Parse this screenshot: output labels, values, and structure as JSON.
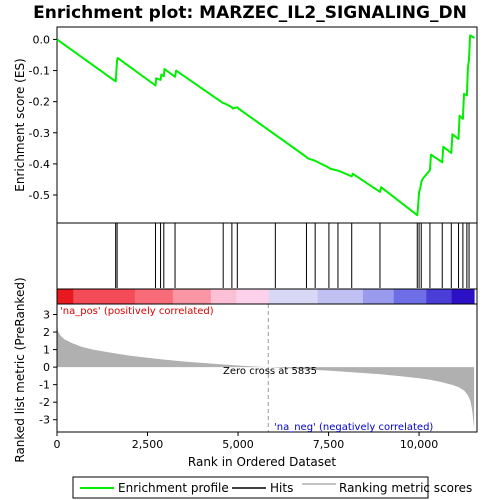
{
  "colors": {
    "enrichment_line": "#00ee00",
    "hits": "#000000",
    "ranking_fill": "#b0b0b0",
    "pos_label": "#dd0000",
    "neg_label": "#0000cc",
    "zero_cross_line": "#999999"
  },
  "chart_data": [
    {
      "type": "line",
      "panel": "enrichment",
      "title": "Enrichment plot: MARZEC_IL2_SIGNALING_DN",
      "ylabel": "Enrichment score (ES)",
      "xlim": [
        0,
        11600
      ],
      "ylim": [
        -0.59,
        0.04
      ],
      "yticks": [
        "0.0",
        "-0.1",
        "-0.2",
        "-0.3",
        "-0.4",
        "-0.5"
      ],
      "ytick_values": [
        0.0,
        -0.1,
        -0.2,
        -0.3,
        -0.4,
        -0.5
      ],
      "series": [
        {
          "name": "Enrichment profile",
          "x": [
            0,
            1620,
            1640,
            1660,
            1680,
            2720,
            2740,
            2860,
            2880,
            2950,
            2970,
            3260,
            3290,
            4590,
            4620,
            4830,
            4850,
            4980,
            5010,
            6890,
            6920,
            7130,
            7160,
            7510,
            7540,
            7760,
            7790,
            8140,
            8170,
            8920,
            8950,
            9950,
            9970,
            10000,
            10030,
            10060,
            10090,
            10300,
            10330,
            10640,
            10670,
            10890,
            10920,
            11090,
            11120,
            11210,
            11240,
            11320,
            11350,
            11380,
            11410,
            11530
          ],
          "y": [
            0.0,
            -0.135,
            -0.1,
            -0.065,
            -0.06,
            -0.148,
            -0.125,
            -0.13,
            -0.113,
            -0.118,
            -0.095,
            -0.12,
            -0.1,
            -0.205,
            -0.205,
            -0.218,
            -0.222,
            -0.218,
            -0.222,
            -0.378,
            -0.382,
            -0.39,
            -0.392,
            -0.412,
            -0.415,
            -0.422,
            -0.423,
            -0.44,
            -0.432,
            -0.49,
            -0.475,
            -0.565,
            -0.54,
            -0.49,
            -0.48,
            -0.46,
            -0.45,
            -0.42,
            -0.37,
            -0.395,
            -0.345,
            -0.365,
            -0.305,
            -0.32,
            -0.245,
            -0.255,
            -0.175,
            -0.18,
            -0.09,
            -0.065,
            0.013,
            0.005
          ]
        }
      ]
    },
    {
      "type": "hits",
      "panel": "hits",
      "name": "Hits",
      "positions": [
        1620,
        1660,
        2720,
        2860,
        2950,
        3260,
        4590,
        4830,
        4980,
        6030,
        6890,
        7130,
        7510,
        7760,
        8140,
        8920,
        9950,
        10000,
        10060,
        10300,
        10640,
        10890,
        11090,
        11210,
        11320,
        11380
      ]
    },
    {
      "type": "heatmap",
      "panel": "rank_colorbar",
      "x_blocks": [
        0,
        450,
        2150,
        3200,
        4250,
        4950,
        5850,
        7200,
        8450,
        9300,
        10200,
        10900,
        11520
      ],
      "block_colors": [
        "#e8181f",
        "#f34b58",
        "#f86c7a",
        "#fa96a3",
        "#fbbfd6",
        "#fbd2ea",
        "#d8d8f6",
        "#c0c0f2",
        "#9a9aee",
        "#6e6ee6",
        "#4a3dd8",
        "#2c10c6"
      ]
    },
    {
      "type": "area",
      "panel": "ranking",
      "ylabel": "Ranked list metric (PreRanked)",
      "xlabel": "Rank in Ordered Dataset",
      "xlim": [
        0,
        11600
      ],
      "ylim": [
        -3.7,
        3.6
      ],
      "yticks": [
        "3",
        "2",
        "1",
        "0",
        "-1",
        "-2",
        "-3"
      ],
      "ytick_values": [
        3,
        2,
        1,
        0,
        -1,
        -2,
        -3
      ],
      "xticks": [
        "0",
        "2,500",
        "5,000",
        "7,500",
        "10,000"
      ],
      "xtick_values": [
        0,
        2500,
        5000,
        7500,
        10000
      ],
      "x": [
        0,
        40,
        100,
        200,
        400,
        700,
        1000,
        1500,
        2000,
        2500,
        3000,
        3500,
        4000,
        4500,
        5000,
        5500,
        5835,
        6500,
        7000,
        7500,
        8000,
        8500,
        9000,
        9500,
        10000,
        10300,
        10600,
        10900,
        11100,
        11250,
        11350,
        11420,
        11470,
        11500,
        11520
      ],
      "y": [
        2.35,
        2.0,
        1.8,
        1.6,
        1.38,
        1.15,
        1.0,
        0.82,
        0.66,
        0.53,
        0.42,
        0.32,
        0.24,
        0.16,
        0.09,
        0.03,
        0.0,
        -0.08,
        -0.14,
        -0.2,
        -0.27,
        -0.34,
        -0.42,
        -0.52,
        -0.63,
        -0.72,
        -0.84,
        -1.0,
        -1.15,
        -1.35,
        -1.6,
        -1.95,
        -2.5,
        -3.1,
        -3.5
      ],
      "zero_cross_rank": 5835,
      "zero_cross_label": "Zero cross at 5835",
      "pos_label": "'na_pos' (positively correlated)",
      "neg_label": "'na_neg' (negatively correlated)"
    }
  ],
  "legend": {
    "items": [
      {
        "label": "Enrichment profile",
        "swatch": "green-line"
      },
      {
        "label": "Hits",
        "swatch": "black-line"
      },
      {
        "label": "Ranking metric scores",
        "swatch": "gray-line"
      }
    ]
  }
}
